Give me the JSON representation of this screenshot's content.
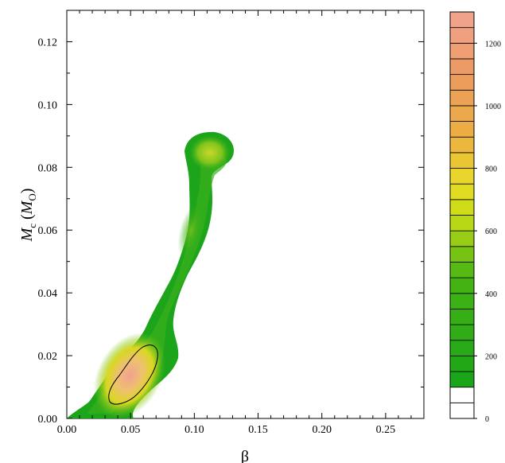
{
  "chart_data": {
    "type": "heatmap",
    "title": "",
    "xlabel": "β",
    "ylabel_main": "M",
    "ylabel_sub": "c",
    "ylabel_unit_main": "M",
    "ylabel_unit_sub": "O",
    "xlim": [
      0.0,
      0.28
    ],
    "ylim": [
      0.0,
      0.13
    ],
    "x_ticks": [
      0.0,
      0.05,
      0.1,
      0.15,
      0.2,
      0.25
    ],
    "x_tick_labels": [
      "0.00",
      "0.05",
      "0.10",
      "0.15",
      "0.20",
      "0.25"
    ],
    "y_ticks": [
      0.0,
      0.02,
      0.04,
      0.06,
      0.08,
      0.1,
      0.12
    ],
    "y_tick_labels": [
      "0.00",
      "0.02",
      "0.04",
      "0.06",
      "0.08",
      "0.10",
      "0.12"
    ],
    "colorbar": {
      "range": [
        0,
        1300
      ],
      "step": 50,
      "ticks": [
        0,
        200,
        400,
        600,
        800,
        1000,
        1200
      ],
      "tick_labels": [
        "0",
        "200",
        "400",
        "600",
        "800",
        "1000",
        "1200"
      ]
    },
    "peaks": [
      {
        "x": 0.052,
        "y": 0.012,
        "value": 1250
      },
      {
        "x": 0.112,
        "y": 0.083,
        "value": 520
      },
      {
        "x": 0.097,
        "y": 0.06,
        "value": 300
      }
    ],
    "contour_level": 1000,
    "colors": {
      "low": "#1aa71a",
      "mid": "#e8e60a",
      "high": "#f0a090"
    }
  }
}
